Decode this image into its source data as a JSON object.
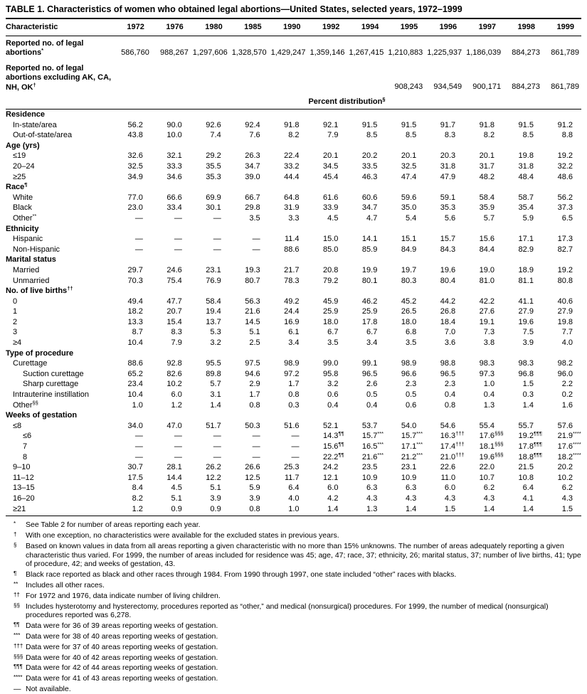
{
  "title": "TABLE 1. Characteristics of women who obtained legal abortions—United States, selected years, 1972–1999",
  "table": {
    "label_column": "Characteristic",
    "years": [
      "1972",
      "1976",
      "1980",
      "1985",
      "1990",
      "1992",
      "1994",
      "1995",
      "1996",
      "1997",
      "1998",
      "1999"
    ],
    "rows": [
      {
        "kind": "count",
        "label": "Reported no. of legal abortions",
        "sup": "*",
        "values": [
          "586,760",
          "988,267",
          "1,297,606",
          "1,328,570",
          "1,429,247",
          "1,359,146",
          "1,267,415",
          "1,210,883",
          "1,225,937",
          "1,186,039",
          "884,273",
          "861,789"
        ]
      },
      {
        "kind": "count",
        "label": "Reported no. of legal abortions excluding AK, CA, NH, OK",
        "sup": "†",
        "values": [
          "",
          "",
          "",
          "",
          "",
          "",
          "",
          "908,243",
          "934,549",
          "900,171",
          "884,273",
          "861,789"
        ]
      },
      {
        "kind": "band",
        "label": "Percent distribution",
        "sup": "§"
      },
      {
        "kind": "section",
        "label": "Residence"
      },
      {
        "kind": "data",
        "label": "In-state/area",
        "indent": 1,
        "values": [
          "56.2",
          "90.0",
          "92.6",
          "92.4",
          "91.8",
          "92.1",
          "91.5",
          "91.5",
          "91.7",
          "91.8",
          "91.5",
          "91.2"
        ]
      },
      {
        "kind": "data",
        "label": "Out-of-state/area",
        "indent": 1,
        "values": [
          "43.8",
          "10.0",
          "7.4",
          "7.6",
          "8.2",
          "7.9",
          "8.5",
          "8.5",
          "8.3",
          "8.2",
          "8.5",
          "8.8"
        ]
      },
      {
        "kind": "section",
        "label": "Age (yrs)"
      },
      {
        "kind": "data",
        "label": "≤19",
        "indent": 1,
        "values": [
          "32.6",
          "32.1",
          "29.2",
          "26.3",
          "22.4",
          "20.1",
          "20.2",
          "20.1",
          "20.3",
          "20.1",
          "19.8",
          "19.2"
        ]
      },
      {
        "kind": "data",
        "label": "20–24",
        "indent": 1,
        "values": [
          "32.5",
          "33.3",
          "35.5",
          "34.7",
          "33.2",
          "34.5",
          "33.5",
          "32.5",
          "31.8",
          "31.7",
          "31.8",
          "32.2"
        ]
      },
      {
        "kind": "data",
        "label": "≥25",
        "indent": 1,
        "values": [
          "34.9",
          "34.6",
          "35.3",
          "39.0",
          "44.4",
          "45.4",
          "46.3",
          "47.4",
          "47.9",
          "48.2",
          "48.4",
          "48.6"
        ]
      },
      {
        "kind": "section",
        "label": "Race",
        "sup": "¶"
      },
      {
        "kind": "data",
        "label": "White",
        "indent": 1,
        "values": [
          "77.0",
          "66.6",
          "69.9",
          "66.7",
          "64.8",
          "61.6",
          "60.6",
          "59.6",
          "59.1",
          "58.4",
          "58.7",
          "56.2"
        ]
      },
      {
        "kind": "data",
        "label": "Black",
        "indent": 1,
        "values": [
          "23.0",
          "33.4",
          "30.1",
          "29.8",
          "31.9",
          "33.9",
          "34.7",
          "35.0",
          "35.3",
          "35.9",
          "35.4",
          "37.3"
        ]
      },
      {
        "kind": "data",
        "label": "Other",
        "sup": "**",
        "indent": 1,
        "values": [
          "—",
          "—",
          "—",
          "3.5",
          "3.3",
          "4.5",
          "4.7",
          "5.4",
          "5.6",
          "5.7",
          "5.9",
          "6.5"
        ]
      },
      {
        "kind": "section",
        "label": "Ethnicity"
      },
      {
        "kind": "data",
        "label": "Hispanic",
        "indent": 1,
        "values": [
          "—",
          "—",
          "—",
          "—",
          "11.4",
          "15.0",
          "14.1",
          "15.1",
          "15.7",
          "15.6",
          "17.1",
          "17.3"
        ]
      },
      {
        "kind": "data",
        "label": "Non-Hispanic",
        "indent": 1,
        "values": [
          "—",
          "—",
          "—",
          "—",
          "88.6",
          "85.0",
          "85.9",
          "84.9",
          "84.3",
          "84.4",
          "82.9",
          "82.7"
        ]
      },
      {
        "kind": "section",
        "label": "Marital status"
      },
      {
        "kind": "data",
        "label": "Married",
        "indent": 1,
        "values": [
          "29.7",
          "24.6",
          "23.1",
          "19.3",
          "21.7",
          "20.8",
          "19.9",
          "19.7",
          "19.6",
          "19.0",
          "18.9",
          "19.2"
        ]
      },
      {
        "kind": "data",
        "label": "Unmarried",
        "indent": 1,
        "values": [
          "70.3",
          "75.4",
          "76.9",
          "80.7",
          "78.3",
          "79.2",
          "80.1",
          "80.3",
          "80.4",
          "81.0",
          "81.1",
          "80.8"
        ]
      },
      {
        "kind": "section",
        "label": "No. of live births",
        "sup": "††"
      },
      {
        "kind": "data",
        "label": "0",
        "indent": 1,
        "values": [
          "49.4",
          "47.7",
          "58.4",
          "56.3",
          "49.2",
          "45.9",
          "46.2",
          "45.2",
          "44.2",
          "42.2",
          "41.1",
          "40.6"
        ]
      },
      {
        "kind": "data",
        "label": "1",
        "indent": 1,
        "values": [
          "18.2",
          "20.7",
          "19.4",
          "21.6",
          "24.4",
          "25.9",
          "25.9",
          "26.5",
          "26.8",
          "27.6",
          "27.9",
          "27.9"
        ]
      },
      {
        "kind": "data",
        "label": "2",
        "indent": 1,
        "values": [
          "13.3",
          "15.4",
          "13.7",
          "14.5",
          "16.9",
          "18.0",
          "17.8",
          "18.0",
          "18.4",
          "19.1",
          "19.6",
          "19.8"
        ]
      },
      {
        "kind": "data",
        "label": "3",
        "indent": 1,
        "values": [
          "8.7",
          "8.3",
          "5.3",
          "5.1",
          "6.1",
          "6.7",
          "6.7",
          "6.8",
          "7.0",
          "7.3",
          "7.5",
          "7.7"
        ]
      },
      {
        "kind": "data",
        "label": "≥4",
        "indent": 1,
        "values": [
          "10.4",
          "7.9",
          "3.2",
          "2.5",
          "3.4",
          "3.5",
          "3.4",
          "3.5",
          "3.6",
          "3.8",
          "3.9",
          "4.0"
        ]
      },
      {
        "kind": "section",
        "label": "Type of procedure"
      },
      {
        "kind": "data",
        "label": "Curettage",
        "indent": 1,
        "values": [
          "88.6",
          "92.8",
          "95.5",
          "97.5",
          "98.9",
          "99.0",
          "99.1",
          "98.9",
          "98.8",
          "98.3",
          "98.3",
          "98.2"
        ]
      },
      {
        "kind": "data",
        "label": "Suction curettage",
        "indent": 2,
        "values": [
          "65.2",
          "82.6",
          "89.8",
          "94.6",
          "97.2",
          "95.8",
          "96.5",
          "96.6",
          "96.5",
          "97.3",
          "96.8",
          "96.0"
        ]
      },
      {
        "kind": "data",
        "label": "Sharp curettage",
        "indent": 2,
        "values": [
          "23.4",
          "10.2",
          "5.7",
          "2.9",
          "1.7",
          "3.2",
          "2.6",
          "2.3",
          "2.3",
          "1.0",
          "1.5",
          "2.2"
        ]
      },
      {
        "kind": "data",
        "label": "Intrauterine instillation",
        "indent": 1,
        "values": [
          "10.4",
          "6.0",
          "3.1",
          "1.7",
          "0.8",
          "0.6",
          "0.5",
          "0.5",
          "0.4",
          "0.4",
          "0.3",
          "0.2"
        ]
      },
      {
        "kind": "data",
        "label": "Other",
        "sup": "§§",
        "indent": 1,
        "values": [
          "1.0",
          "1.2",
          "1.4",
          "0.8",
          "0.3",
          "0.4",
          "0.4",
          "0.6",
          "0.8",
          "1.3",
          "1.4",
          "1.6"
        ]
      },
      {
        "kind": "section",
        "label": "Weeks of gestation"
      },
      {
        "kind": "data",
        "label": "≤8",
        "indent": 1,
        "values": [
          "34.0",
          "47.0",
          "51.7",
          "50.3",
          "51.6",
          "52.1",
          "53.7",
          "54.0",
          "54.6",
          "55.4",
          "55.7",
          "57.6"
        ]
      },
      {
        "kind": "data",
        "label": "≤6",
        "indent": 2,
        "values": [
          "—",
          "—",
          "—",
          "—",
          "—",
          [
            "14.3",
            "¶¶"
          ],
          [
            "15.7",
            "***"
          ],
          [
            "15.7",
            "***"
          ],
          [
            "16.3",
            "†††"
          ],
          [
            "17.6",
            "§§§"
          ],
          [
            "19.2",
            "¶¶¶"
          ],
          [
            "21.9",
            "****"
          ]
        ]
      },
      {
        "kind": "data",
        "label": "7",
        "indent": 2,
        "values": [
          "—",
          "—",
          "—",
          "—",
          "—",
          [
            "15.6",
            "¶¶"
          ],
          [
            "16.5",
            "***"
          ],
          [
            "17.1",
            "***"
          ],
          [
            "17.4",
            "†††"
          ],
          [
            "18.1",
            "§§§"
          ],
          [
            "17.8",
            "¶¶¶"
          ],
          [
            "17.6",
            "****"
          ]
        ]
      },
      {
        "kind": "data",
        "label": "8",
        "indent": 2,
        "values": [
          "—",
          "—",
          "—",
          "—",
          "—",
          [
            "22.2",
            "¶¶"
          ],
          [
            "21.6",
            "***"
          ],
          [
            "21.2",
            "***"
          ],
          [
            "21.0",
            "†††"
          ],
          [
            "19.6",
            "§§§"
          ],
          [
            "18.8",
            "¶¶¶"
          ],
          [
            "18.2",
            "****"
          ]
        ]
      },
      {
        "kind": "data",
        "label": "9–10",
        "indent": 1,
        "values": [
          "30.7",
          "28.1",
          "26.2",
          "26.6",
          "25.3",
          "24.2",
          "23.5",
          "23.1",
          "22.6",
          "22.0",
          "21.5",
          "20.2"
        ]
      },
      {
        "kind": "data",
        "label": "11–12",
        "indent": 1,
        "values": [
          "17.5",
          "14.4",
          "12.2",
          "12.5",
          "11.7",
          "12.1",
          "10.9",
          "10.9",
          "11.0",
          "10.7",
          "10.8",
          "10.2"
        ]
      },
      {
        "kind": "data",
        "label": "13–15",
        "indent": 1,
        "values": [
          "8.4",
          "4.5",
          "5.1",
          "5.9",
          "6.4",
          "6.0",
          "6.3",
          "6.3",
          "6.0",
          "6.2",
          "6.4",
          "6.2"
        ]
      },
      {
        "kind": "data",
        "label": "16–20",
        "indent": 1,
        "values": [
          "8.2",
          "5.1",
          "3.9",
          "3.9",
          "4.0",
          "4.2",
          "4.3",
          "4.3",
          "4.3",
          "4.3",
          "4.1",
          "4.3"
        ]
      },
      {
        "kind": "data",
        "label": "≥21",
        "indent": 1,
        "values": [
          "1.2",
          "0.9",
          "0.9",
          "0.8",
          "1.0",
          "1.4",
          "1.3",
          "1.4",
          "1.5",
          "1.4",
          "1.4",
          "1.5"
        ]
      }
    ]
  },
  "footnotes": [
    {
      "mark": "*",
      "text": "See Table 2 for number of areas reporting each year."
    },
    {
      "mark": "†",
      "text": "With one exception, no characteristics were available for the excluded states in previous years."
    },
    {
      "mark": "§",
      "text": "Based on known values in data from all areas reporting a given characteristic with no more than 15% unknowns. The number of areas adequately reporting a given characteristic thus varied. For 1999, the number of areas included for residence was 45; age, 47; race, 37; ethnicity, 26; marital status, 37; number of live births, 41; type of procedure, 42; and weeks of gestation, 43."
    },
    {
      "mark": "¶",
      "text": "Black race reported as black and other races through 1984. From 1990 through 1997, one state included “other” races with blacks."
    },
    {
      "mark": "**",
      "text": "Includes all other races."
    },
    {
      "mark": "††",
      "text": "For 1972 and 1976, data indicate number of living children."
    },
    {
      "mark": "§§",
      "text": "Includes hysterotomy and hysterectomy, procedures reported as “other,” and medical (nonsurgical) procedures. For 1999, the number of medical (nonsurgical) procedures reported was 6,278."
    },
    {
      "mark": "¶¶",
      "text": "Data were for 36 of 39 areas reporting weeks of gestation."
    },
    {
      "mark": "***",
      "text": "Data were for 38 of 40 areas reporting weeks of gestation."
    },
    {
      "mark": "†††",
      "text": "Data were for 37 of 40 areas reporting weeks of gestation."
    },
    {
      "mark": "§§§",
      "text": "Data were for 40 of 42 areas reporting weeks of gestation."
    },
    {
      "mark": "¶¶¶",
      "text": "Data were for 42 of 44 areas reporting weeks of gestation."
    },
    {
      "mark": "****",
      "text": "Data were for 41 of 43 areas reporting weeks of gestation."
    },
    {
      "mark": "—",
      "text": "Not available."
    }
  ]
}
